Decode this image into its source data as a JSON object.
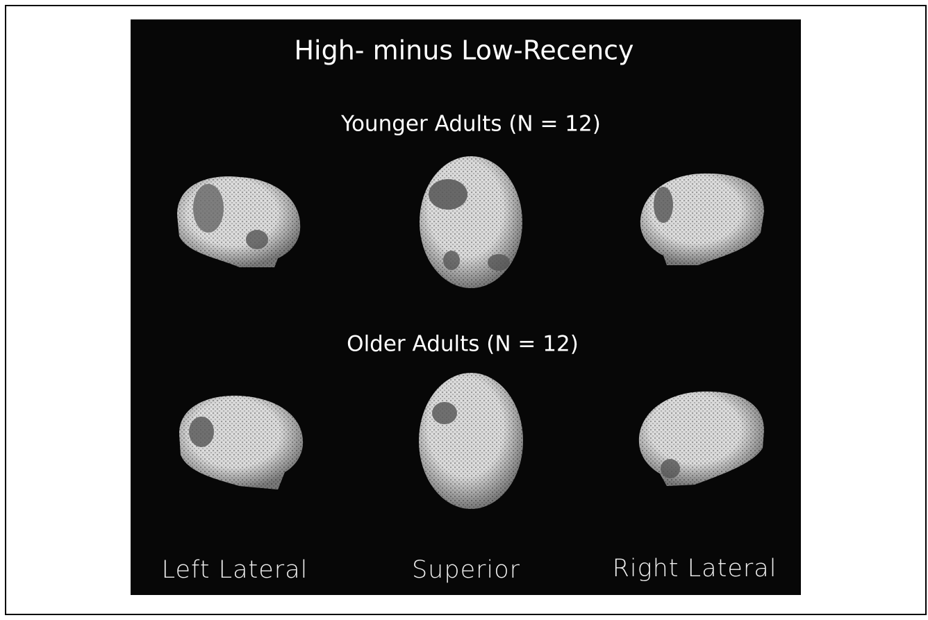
{
  "figure": {
    "title": "High- minus Low-Recency",
    "groups": [
      "Younger Adults (N = 12)",
      "Older Adults (N = 12)"
    ],
    "views": [
      "Left Lateral",
      "Superior",
      "Right Lateral"
    ]
  }
}
